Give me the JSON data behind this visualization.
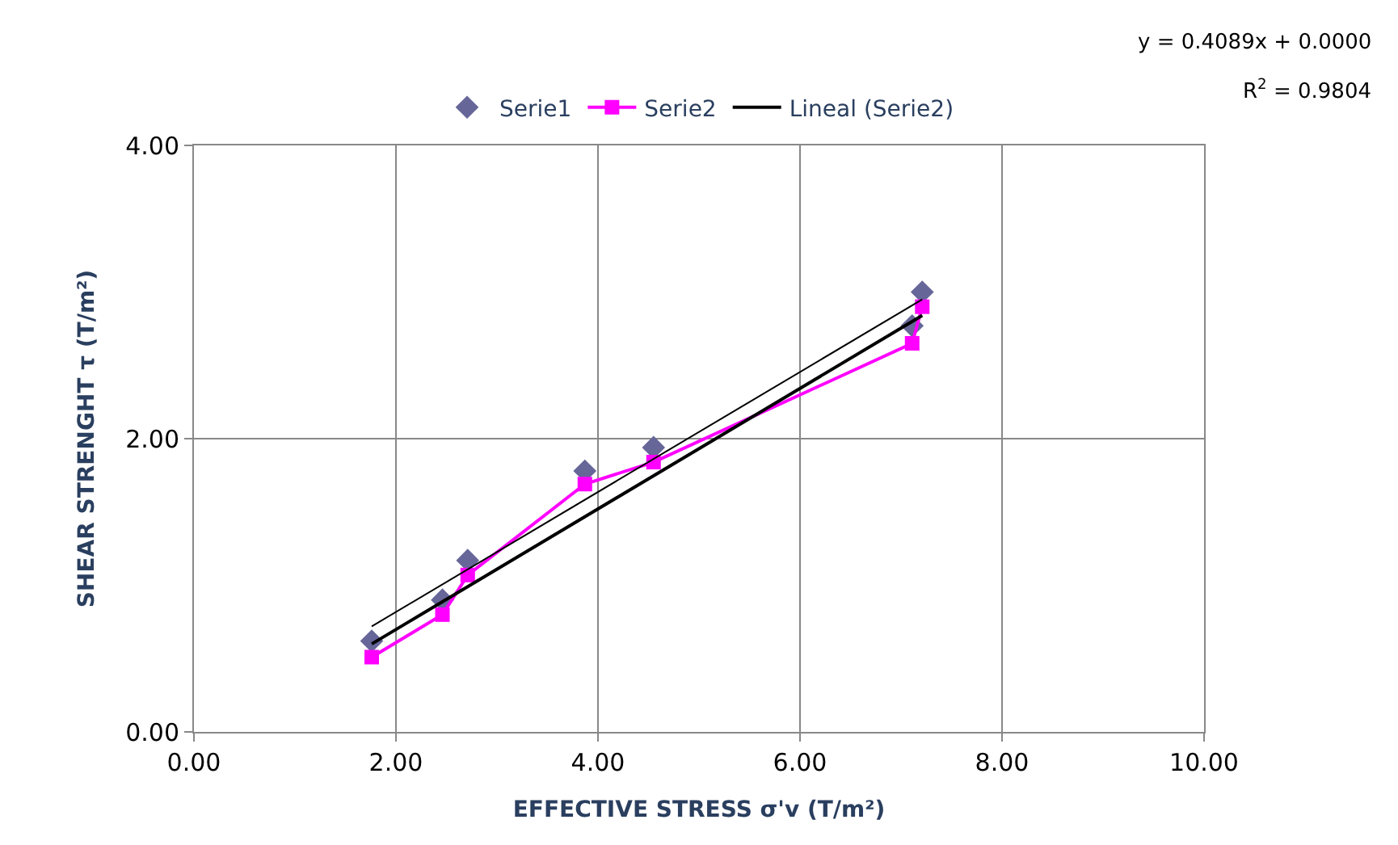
{
  "chart_data": {
    "type": "scatter",
    "xlabel": "EFFECTIVE STRESS σ'v (T/m²)",
    "ylabel": "SHEAR STRENGHT τ (T/m²)",
    "xlim": [
      0,
      10
    ],
    "xticks": [
      {
        "value": 0,
        "label": "0.00"
      },
      {
        "value": 2,
        "label": "2.00"
      },
      {
        "value": 4,
        "label": "4.00"
      },
      {
        "value": 6,
        "label": "6.00"
      },
      {
        "value": 8,
        "label": "8.00"
      },
      {
        "value": 10,
        "label": "10.00"
      }
    ],
    "ylim": [
      0,
      4
    ],
    "yticks": [
      {
        "value": 0,
        "label": "0.00"
      },
      {
        "value": 2,
        "label": "2.00"
      },
      {
        "value": 4,
        "label": "4.00"
      }
    ],
    "grid": true,
    "legend": "top",
    "series": [
      {
        "name": "Serie1",
        "marker": "diamond",
        "color": "#666699",
        "x": [
          1.76,
          2.46,
          2.71,
          3.87,
          4.55,
          7.11,
          7.21
        ],
        "values": [
          0.62,
          0.9,
          1.17,
          1.78,
          1.94,
          2.77,
          3.0
        ]
      },
      {
        "name": "Serie2",
        "type": "line",
        "marker": "square",
        "color": "#ff00ff",
        "x": [
          1.76,
          2.46,
          2.71,
          3.87,
          4.55,
          7.11,
          7.21
        ],
        "values": [
          0.51,
          0.8,
          1.07,
          1.69,
          1.84,
          2.65,
          2.9
        ]
      },
      {
        "name": "Lineal (Serie2)",
        "type": "line",
        "marker": "none",
        "color": "#000000",
        "x": [
          1.76,
          7.21
        ],
        "values": [
          0.6,
          2.84
        ]
      },
      {
        "type": "line",
        "marker": "none",
        "color": "#000000",
        "x": [
          1.76,
          7.21
        ],
        "values": [
          0.72,
          2.95
        ]
      }
    ],
    "annotations": [
      "y = 0.4089x + 0.0000",
      "R$^{2}$ = 0.9804"
    ]
  }
}
